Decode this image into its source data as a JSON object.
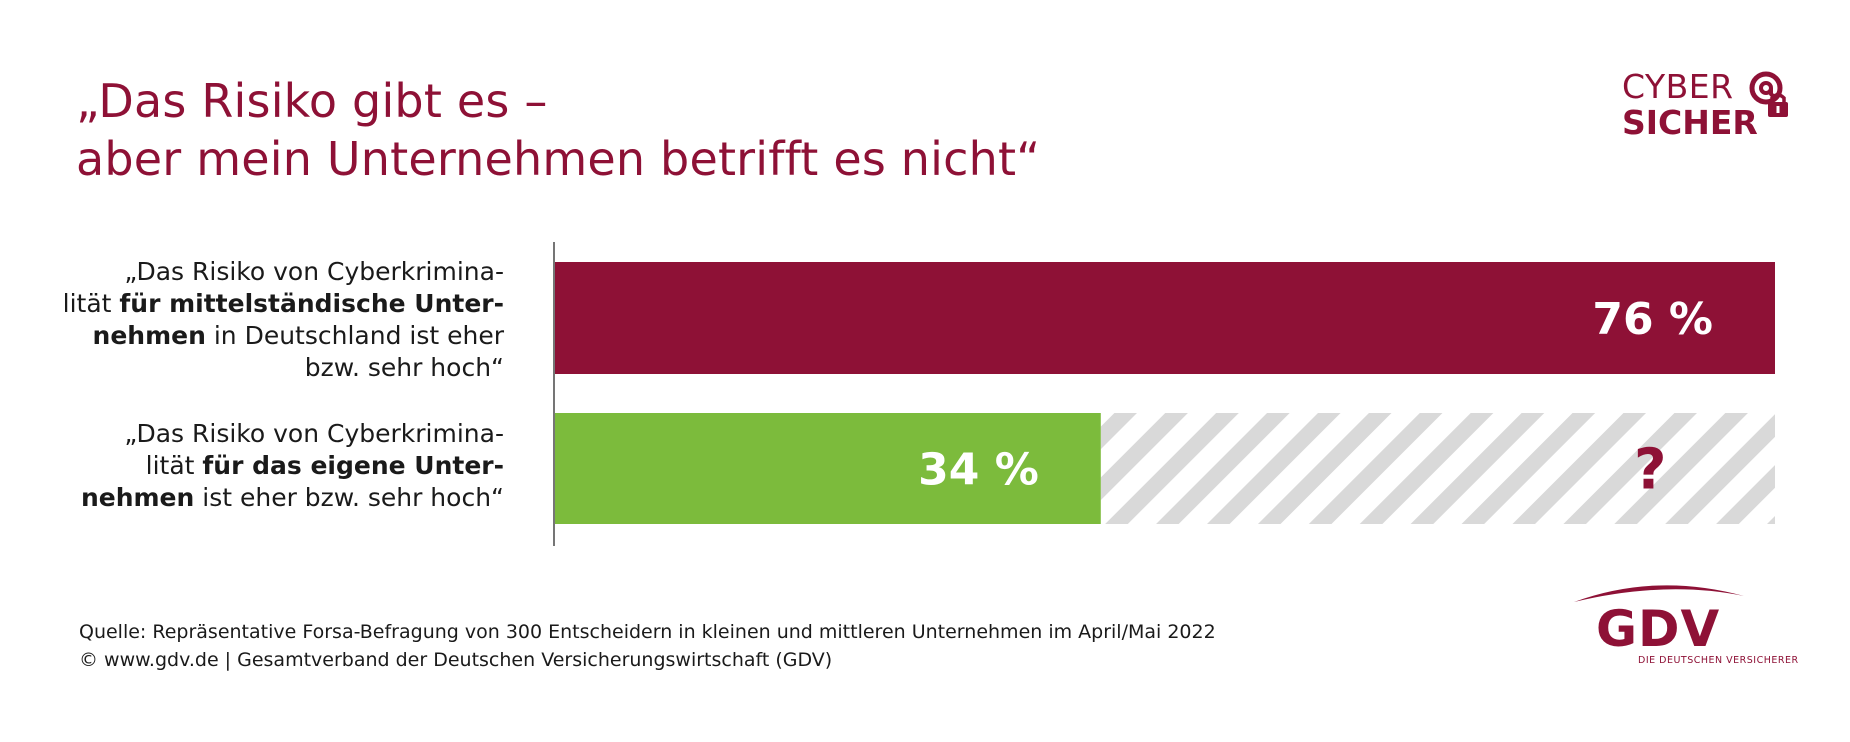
{
  "title": {
    "line1": "„Das Risiko gibt es –",
    "line2": "aber mein Unternehmen betrifft es nicht“"
  },
  "brand": {
    "cyber_line1": "CYBER",
    "cyber_line2": "SICHER",
    "cyber_icon": "at-sign-padlock-icon",
    "gdv_word": "GDV",
    "gdv_subline": "DIE DEUTSCHEN VERSICHERER"
  },
  "labels": {
    "row1": {
      "l1_plain": "„Das Risiko von Cyberkrimina-",
      "l2_plain": "lität ",
      "l2_bold": "für mittelständische Unter-",
      "l3_bold": "nehmen",
      "l3_plain": " in Deutschland ist eher",
      "l4_plain": "bzw. sehr hoch“"
    },
    "row2": {
      "l1_plain": "„Das Risiko von Cyberkrimina-",
      "l2_plain": "lität ",
      "l2_bold": "für das eigene Unter-",
      "l3_bold": "nehmen",
      "l3_plain": " ist eher bzw. sehr hoch“"
    }
  },
  "chart_data": {
    "type": "bar",
    "orientation": "horizontal",
    "categories": [
      "„Das Risiko von Cyberkriminalität für mittelständische Unternehmen in Deutschland ist eher bzw. sehr hoch“",
      "„Das Risiko von Cyberkriminalität für das eigene Unternehmen ist eher bzw. sehr hoch“"
    ],
    "values": [
      76,
      34
    ],
    "value_labels": [
      "76 %",
      "34 %"
    ],
    "unknown_remainder_label": "?",
    "xlim": [
      0,
      76
    ],
    "colors": {
      "bar1": "#8e1136",
      "bar2": "#7cbb3c",
      "hatch": "#d9d9d9",
      "question": "#8e1136"
    }
  },
  "footnote": {
    "source": "Quelle: Repräsentative Forsa-Befragung von 300 Entscheidern in kleinen und mittleren Unternehmen im April/Mai 2022",
    "copyright": "© www.gdv.de | Gesamtverband der Deutschen Versicherungswirtschaft (GDV)"
  }
}
